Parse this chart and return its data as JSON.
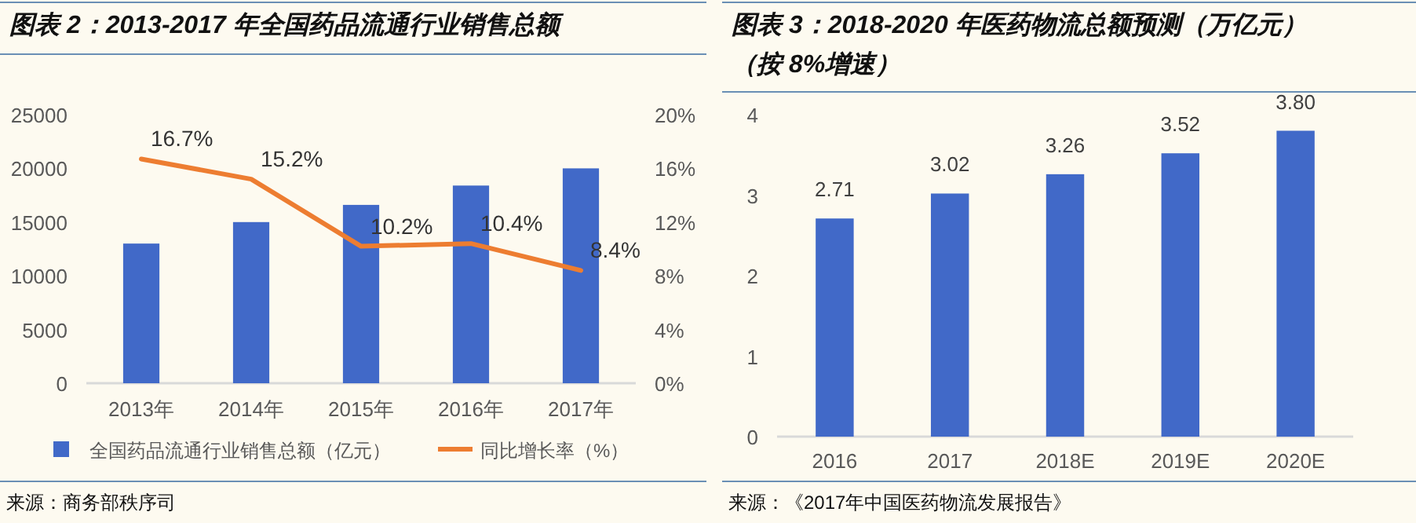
{
  "chart_data": [
    {
      "type": "bar",
      "title": "图表 2：2013-2017 年全国药品流通行业销售总额",
      "categories": [
        "2013年",
        "2014年",
        "2015年",
        "2016年",
        "2017年"
      ],
      "series": [
        {
          "name": "全国药品流通行业销售总额（亿元）",
          "color": "#4169c8",
          "values": [
            13000,
            15000,
            16600,
            18400,
            20000
          ]
        },
        {
          "name": "同比增长率（%）",
          "type": "line",
          "axis": "y2",
          "color": "#ed7d31",
          "values": [
            16.7,
            15.2,
            10.2,
            10.4,
            8.4
          ],
          "value_labels": [
            "16.7%",
            "15.2%",
            "10.2%",
            "10.4%",
            "8.4%"
          ]
        }
      ],
      "ylim": [
        0,
        25000
      ],
      "yticks": [
        0,
        5000,
        10000,
        15000,
        20000,
        25000
      ],
      "y2lim": [
        0,
        20
      ],
      "y2ticks": [
        {
          "value": 0,
          "label": "0%"
        },
        {
          "value": 4,
          "label": "4%"
        },
        {
          "value": 8,
          "label": "8%"
        },
        {
          "value": 12,
          "label": "12%"
        },
        {
          "value": 16,
          "label": "16%"
        },
        {
          "value": 20,
          "label": "20%"
        }
      ],
      "legend": "bottom",
      "annotations": [
        "来源：商务部秩序司"
      ]
    },
    {
      "type": "bar",
      "title": "图表 3：2018-2020 年医药物流总额预测（万亿元）（按 8%增速）",
      "categories": [
        "2016",
        "2017",
        "2018E",
        "2019E",
        "2020E"
      ],
      "series": [
        {
          "color": "#4169c8",
          "values": [
            2.71,
            3.02,
            3.26,
            3.52,
            3.8
          ],
          "value_labels": [
            "2.71",
            "3.02",
            "3.26",
            "3.52",
            "3.80"
          ]
        }
      ],
      "ylim": [
        0,
        4
      ],
      "yticks": [
        0,
        1,
        2,
        3,
        4
      ],
      "legend": false,
      "annotations": [
        "来源：《2017年中国医药物流发展报告》"
      ]
    }
  ]
}
